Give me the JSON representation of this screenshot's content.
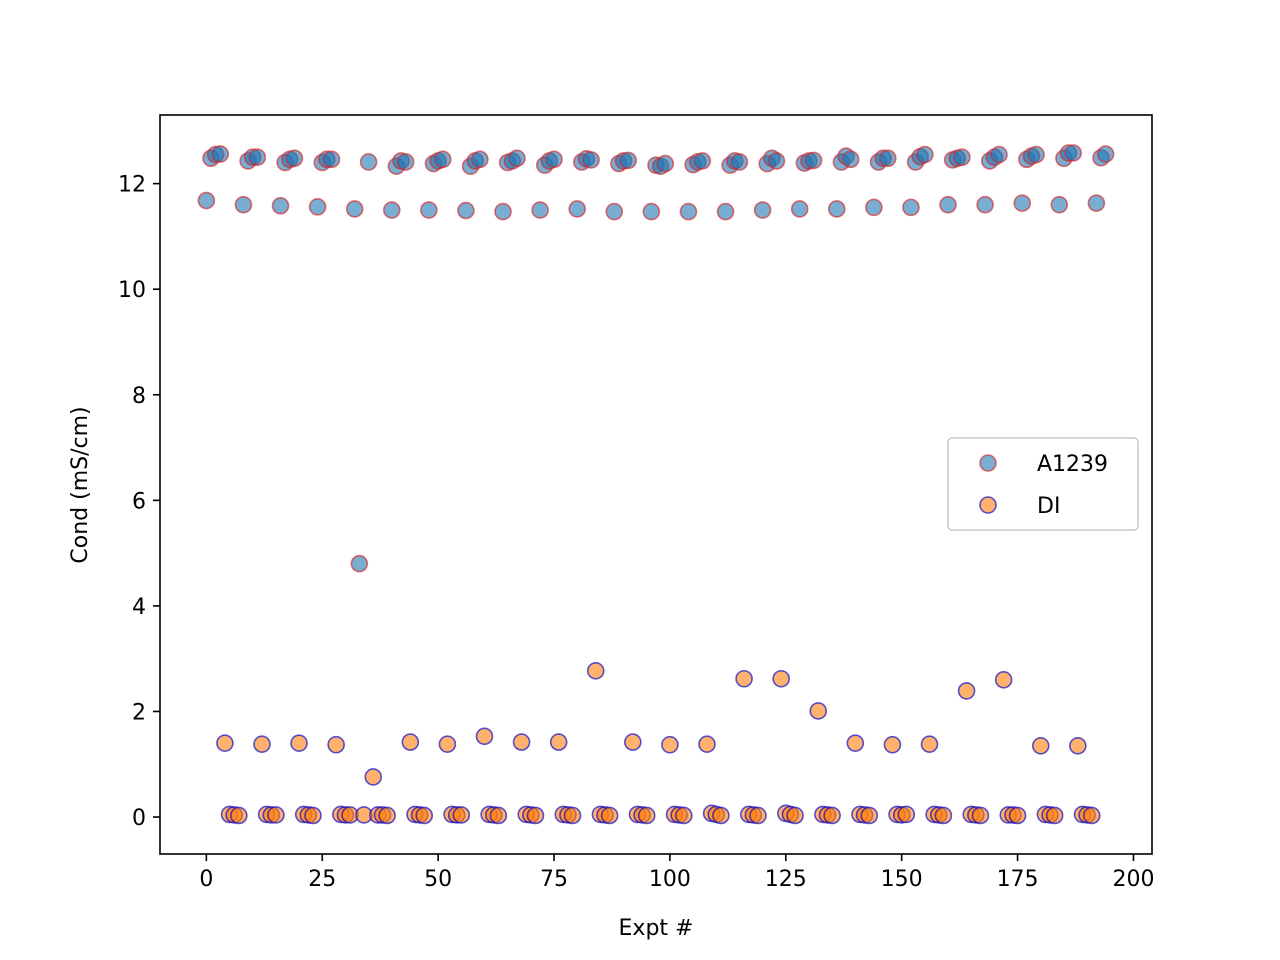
{
  "chart_data": {
    "type": "scatter",
    "title": "",
    "xlabel": "Expt #",
    "ylabel": "Cond (mS/cm)",
    "xlim": [
      -10,
      204
    ],
    "ylim": [
      -0.7,
      13.3
    ],
    "xticks": [
      0,
      25,
      50,
      75,
      100,
      125,
      150,
      175,
      200
    ],
    "yticks": [
      0,
      2,
      4,
      6,
      8,
      10,
      12
    ],
    "grid": false,
    "legend_position": "center-right",
    "series": [
      {
        "name": "A1239",
        "face_color": "#1f77b4",
        "edge_color": "#d62728",
        "points": [
          [
            0,
            11.68
          ],
          [
            1,
            12.48
          ],
          [
            2,
            12.55
          ],
          [
            3,
            12.56
          ],
          [
            8,
            11.6
          ],
          [
            9,
            12.43
          ],
          [
            10,
            12.5
          ],
          [
            11,
            12.5
          ],
          [
            16,
            11.58
          ],
          [
            17,
            12.4
          ],
          [
            18,
            12.46
          ],
          [
            19,
            12.48
          ],
          [
            24,
            11.56
          ],
          [
            25,
            12.4
          ],
          [
            26,
            12.46
          ],
          [
            27,
            12.46
          ],
          [
            32,
            11.52
          ],
          [
            33,
            4.8
          ],
          [
            35,
            12.41
          ],
          [
            40,
            11.5
          ],
          [
            41,
            12.33
          ],
          [
            42,
            12.43
          ],
          [
            43,
            12.41
          ],
          [
            48,
            11.5
          ],
          [
            49,
            12.38
          ],
          [
            50,
            12.43
          ],
          [
            51,
            12.46
          ],
          [
            56,
            11.49
          ],
          [
            57,
            12.33
          ],
          [
            58,
            12.43
          ],
          [
            59,
            12.46
          ],
          [
            64,
            11.47
          ],
          [
            65,
            12.4
          ],
          [
            66,
            12.43
          ],
          [
            67,
            12.48
          ],
          [
            72,
            11.5
          ],
          [
            73,
            12.35
          ],
          [
            74,
            12.43
          ],
          [
            75,
            12.46
          ],
          [
            80,
            11.52
          ],
          [
            81,
            12.41
          ],
          [
            82,
            12.47
          ],
          [
            83,
            12.45
          ],
          [
            88,
            11.47
          ],
          [
            89,
            12.38
          ],
          [
            90,
            12.43
          ],
          [
            91,
            12.44
          ],
          [
            96,
            11.47
          ],
          [
            97,
            12.35
          ],
          [
            98,
            12.33
          ],
          [
            99,
            12.38
          ],
          [
            104,
            11.47
          ],
          [
            105,
            12.36
          ],
          [
            106,
            12.41
          ],
          [
            107,
            12.43
          ],
          [
            112,
            11.47
          ],
          [
            113,
            12.35
          ],
          [
            114,
            12.43
          ],
          [
            115,
            12.41
          ],
          [
            120,
            11.5
          ],
          [
            121,
            12.38
          ],
          [
            122,
            12.48
          ],
          [
            123,
            12.43
          ],
          [
            128,
            11.52
          ],
          [
            129,
            12.39
          ],
          [
            130,
            12.43
          ],
          [
            131,
            12.44
          ],
          [
            136,
            11.52
          ],
          [
            137,
            12.41
          ],
          [
            138,
            12.52
          ],
          [
            139,
            12.46
          ],
          [
            144,
            11.55
          ],
          [
            145,
            12.41
          ],
          [
            146,
            12.48
          ],
          [
            147,
            12.48
          ],
          [
            152,
            11.55
          ],
          [
            153,
            12.41
          ],
          [
            154,
            12.51
          ],
          [
            155,
            12.55
          ],
          [
            160,
            11.6
          ],
          [
            161,
            12.45
          ],
          [
            162,
            12.48
          ],
          [
            163,
            12.5
          ],
          [
            168,
            11.6
          ],
          [
            169,
            12.43
          ],
          [
            170,
            12.5
          ],
          [
            171,
            12.55
          ],
          [
            176,
            11.63
          ],
          [
            177,
            12.46
          ],
          [
            178,
            12.52
          ],
          [
            179,
            12.55
          ],
          [
            184,
            11.6
          ],
          [
            185,
            12.48
          ],
          [
            186,
            12.58
          ],
          [
            187,
            12.58
          ],
          [
            192,
            11.63
          ],
          [
            193,
            12.49
          ],
          [
            194,
            12.56
          ]
        ]
      },
      {
        "name": "DI",
        "face_color": "#ff7f0e",
        "edge_color": "#0000cc",
        "points": [
          [
            4,
            1.4
          ],
          [
            5,
            0.05
          ],
          [
            6,
            0.04
          ],
          [
            7,
            0.03
          ],
          [
            12,
            1.38
          ],
          [
            13,
            0.05
          ],
          [
            14,
            0.04
          ],
          [
            15,
            0.04
          ],
          [
            20,
            1.4
          ],
          [
            21,
            0.05
          ],
          [
            22,
            0.04
          ],
          [
            23,
            0.03
          ],
          [
            28,
            1.37
          ],
          [
            29,
            0.05
          ],
          [
            30,
            0.04
          ],
          [
            31,
            0.04
          ],
          [
            34,
            0.04
          ],
          [
            36,
            0.76
          ],
          [
            37,
            0.04
          ],
          [
            38,
            0.04
          ],
          [
            39,
            0.03
          ],
          [
            44,
            1.42
          ],
          [
            45,
            0.05
          ],
          [
            46,
            0.04
          ],
          [
            47,
            0.03
          ],
          [
            52,
            1.38
          ],
          [
            53,
            0.05
          ],
          [
            54,
            0.04
          ],
          [
            55,
            0.04
          ],
          [
            60,
            1.53
          ],
          [
            61,
            0.05
          ],
          [
            62,
            0.04
          ],
          [
            63,
            0.03
          ],
          [
            68,
            1.42
          ],
          [
            69,
            0.05
          ],
          [
            70,
            0.04
          ],
          [
            71,
            0.03
          ],
          [
            76,
            1.42
          ],
          [
            77,
            0.05
          ],
          [
            78,
            0.04
          ],
          [
            79,
            0.03
          ],
          [
            84,
            2.77
          ],
          [
            85,
            0.05
          ],
          [
            86,
            0.04
          ],
          [
            87,
            0.03
          ],
          [
            92,
            1.42
          ],
          [
            93,
            0.05
          ],
          [
            94,
            0.04
          ],
          [
            95,
            0.03
          ],
          [
            100,
            1.37
          ],
          [
            101,
            0.05
          ],
          [
            102,
            0.04
          ],
          [
            103,
            0.03
          ],
          [
            108,
            1.38
          ],
          [
            109,
            0.07
          ],
          [
            110,
            0.05
          ],
          [
            111,
            0.03
          ],
          [
            116,
            2.62
          ],
          [
            117,
            0.05
          ],
          [
            118,
            0.04
          ],
          [
            119,
            0.03
          ],
          [
            124,
            2.62
          ],
          [
            125,
            0.07
          ],
          [
            126,
            0.05
          ],
          [
            127,
            0.03
          ],
          [
            132,
            2.01
          ],
          [
            133,
            0.05
          ],
          [
            134,
            0.04
          ],
          [
            135,
            0.03
          ],
          [
            140,
            1.4
          ],
          [
            141,
            0.05
          ],
          [
            142,
            0.04
          ],
          [
            143,
            0.03
          ],
          [
            148,
            1.37
          ],
          [
            149,
            0.05
          ],
          [
            150,
            0.04
          ],
          [
            151,
            0.05
          ],
          [
            156,
            1.38
          ],
          [
            157,
            0.05
          ],
          [
            158,
            0.04
          ],
          [
            159,
            0.03
          ],
          [
            164,
            2.39
          ],
          [
            165,
            0.05
          ],
          [
            166,
            0.04
          ],
          [
            167,
            0.03
          ],
          [
            172,
            2.6
          ],
          [
            173,
            0.04
          ],
          [
            174,
            0.04
          ],
          [
            175,
            0.03
          ],
          [
            180,
            1.35
          ],
          [
            181,
            0.05
          ],
          [
            182,
            0.04
          ],
          [
            183,
            0.03
          ],
          [
            188,
            1.35
          ],
          [
            189,
            0.05
          ],
          [
            190,
            0.04
          ],
          [
            191,
            0.03
          ]
        ]
      }
    ]
  }
}
